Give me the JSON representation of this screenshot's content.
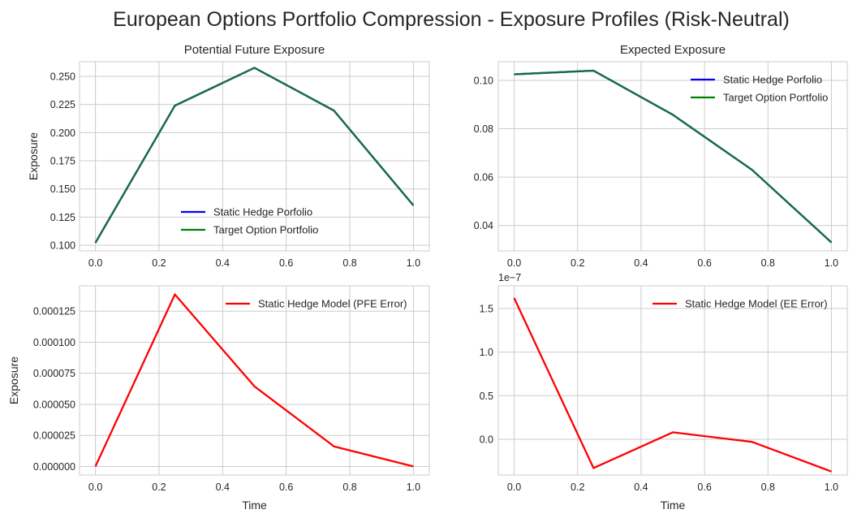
{
  "figure_title": "European Options Portfolio Compression - Exposure Profiles (Risk-Neutral)",
  "colors": {
    "static_hedge": "#0000ff",
    "target": "#008000",
    "error": "#ff0000",
    "overlap": "#166f38"
  },
  "chart_data": [
    {
      "type": "line",
      "title": "Potential Future Exposure",
      "xlabel": "",
      "ylabel": "Exposure",
      "x": [
        0.0,
        0.25,
        0.5,
        0.75,
        1.0
      ],
      "xticks": [
        0.0,
        0.2,
        0.4,
        0.6,
        0.8,
        1.0
      ],
      "xtick_labels": [
        "0.0",
        "0.2",
        "0.4",
        "0.6",
        "0.8",
        "1.0"
      ],
      "xlim": [
        -0.05,
        1.05
      ],
      "yticks": [
        0.1,
        0.125,
        0.15,
        0.175,
        0.2,
        0.225,
        0.25
      ],
      "ytick_labels": [
        "0.100",
        "0.125",
        "0.150",
        "0.175",
        "0.200",
        "0.225",
        "0.250"
      ],
      "ylim": [
        0.095,
        0.263
      ],
      "grid": true,
      "legend": "lower-center",
      "series": [
        {
          "name": "Static Hedge Porfolio",
          "color": "#0000ff",
          "values": [
            0.1023,
            0.224,
            0.2576,
            0.2196,
            0.1354
          ]
        },
        {
          "name": "Target Option Portfolio",
          "color": "#008000",
          "values": [
            0.1023,
            0.224,
            0.2576,
            0.2196,
            0.1354
          ]
        }
      ]
    },
    {
      "type": "line",
      "title": "Expected Exposure",
      "xlabel": "",
      "ylabel": "",
      "x": [
        0.0,
        0.25,
        0.5,
        0.75,
        1.0
      ],
      "xticks": [
        0.0,
        0.2,
        0.4,
        0.6,
        0.8,
        1.0
      ],
      "xtick_labels": [
        "0.0",
        "0.2",
        "0.4",
        "0.6",
        "0.8",
        "1.0"
      ],
      "xlim": [
        -0.05,
        1.05
      ],
      "yticks": [
        0.04,
        0.06,
        0.08,
        0.1
      ],
      "ytick_labels": [
        "0.04",
        "0.06",
        "0.08",
        "0.10"
      ],
      "ylim": [
        0.0295,
        0.1077
      ],
      "grid": true,
      "legend": "upper-right",
      "series": [
        {
          "name": "Static Hedge Porfolio",
          "color": "#0000ff",
          "values": [
            0.1025,
            0.104,
            0.0858,
            0.063,
            0.033
          ]
        },
        {
          "name": "Target Option Portfolio",
          "color": "#008000",
          "values": [
            0.1025,
            0.104,
            0.0858,
            0.063,
            0.033
          ]
        }
      ]
    },
    {
      "type": "line",
      "title": "",
      "xlabel": "Time",
      "ylabel": "Exposure",
      "x": [
        0.0,
        0.25,
        0.5,
        0.75,
        1.0
      ],
      "xticks": [
        0.0,
        0.2,
        0.4,
        0.6,
        0.8,
        1.0
      ],
      "xtick_labels": [
        "0.0",
        "0.2",
        "0.4",
        "0.6",
        "0.8",
        "1.0"
      ],
      "xlim": [
        -0.05,
        1.05
      ],
      "yticks": [
        0.0,
        2.5e-05,
        5e-05,
        7.5e-05,
        0.0001,
        0.000125
      ],
      "ytick_labels": [
        "0.000000",
        "0.000025",
        "0.000050",
        "0.000075",
        "0.000100",
        "0.000125"
      ],
      "ylim": [
        -6.9e-06,
        0.0001454
      ],
      "grid": true,
      "legend": "upper-right",
      "series": [
        {
          "name": "Static Hedge Model (PFE Error)",
          "color": "#ff0000",
          "values": [
            0.0,
            0.0001385,
            6.45e-05,
            1.62e-05,
            0.0
          ]
        }
      ]
    },
    {
      "type": "line",
      "title": "",
      "xlabel": "Time",
      "ylabel": "",
      "offset_label": "1e−7",
      "x": [
        0.0,
        0.25,
        0.5,
        0.75,
        1.0
      ],
      "xticks": [
        0.0,
        0.2,
        0.4,
        0.6,
        0.8,
        1.0
      ],
      "xtick_labels": [
        "0.0",
        "0.2",
        "0.4",
        "0.6",
        "0.8",
        "1.0"
      ],
      "xlim": [
        -0.05,
        1.05
      ],
      "yticks": [
        0.0,
        0.5,
        1.0,
        1.5
      ],
      "ytick_labels": [
        "0.0",
        "0.5",
        "1.0",
        "1.5"
      ],
      "ylim": [
        -0.41,
        1.76
      ],
      "grid": true,
      "legend": "upper-right",
      "series": [
        {
          "name": "Static Hedge Model (EE Error)",
          "color": "#ff0000",
          "values": [
            1.62,
            -0.33,
            0.08,
            -0.03,
            -0.37
          ]
        }
      ]
    }
  ]
}
